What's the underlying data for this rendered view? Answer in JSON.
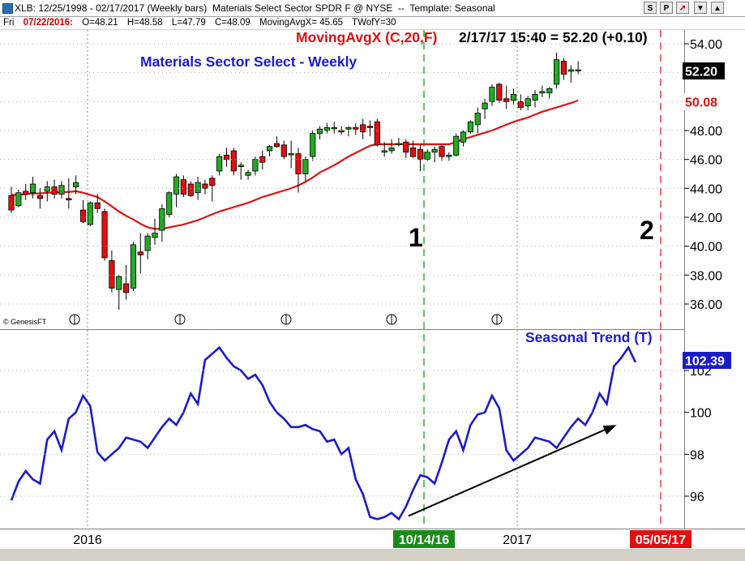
{
  "titlebar": {
    "symbol": "XLB: 12/25/1998 - 02/17/2017",
    "bars": "(Weekly bars)",
    "security": "Materials Select Sector SPDR F @ NYSE",
    "sep": "--",
    "template": "Template: Seasonal",
    "buttons": [
      "S",
      "P",
      "↗",
      "▼",
      "▲"
    ]
  },
  "ohlc_row": {
    "day": "Fri",
    "date": "07/22/2016:",
    "open": "O=48.21",
    "high": "H=48.58",
    "low": "L=47.79",
    "close": "C=48.09",
    "ma": "MovingAvgX= 45.65",
    "tw": "TWofY=30"
  },
  "chart_data": [
    {
      "type": "candlestick",
      "title": "Materials Sector Select - Weekly",
      "indicator_label": "MovingAvgX (C,20,F)",
      "status_label": "2/17/17 15:40 = 52.20 (+0.10)",
      "ylim": [
        35,
        55
      ],
      "y_ticks": [
        36,
        38,
        40,
        42,
        44,
        46,
        48,
        50,
        52,
        54
      ],
      "y_tick_labels": [
        "36.00",
        "38.00",
        "40.00",
        "42.00",
        "44.00",
        "46.00",
        "48.00",
        "50.00",
        "52.00",
        "54.00"
      ],
      "last_price_label": "52.20",
      "ma_value_label": "50.08",
      "watermark": "© GenesisFT",
      "candles": [
        [
          43.5,
          44.1,
          42.3,
          42.5
        ],
        [
          42.8,
          43.9,
          42.7,
          43.7
        ],
        [
          43.8,
          44.3,
          43.2,
          43.6
        ],
        [
          43.7,
          44.8,
          43.3,
          44.3
        ],
        [
          43.5,
          44.0,
          42.6,
          43.3
        ],
        [
          43.8,
          44.5,
          43.1,
          44.1
        ],
        [
          44.1,
          44.6,
          43.3,
          43.6
        ],
        [
          43.6,
          44.5,
          43.3,
          44.2
        ],
        [
          43.3,
          44.7,
          42.6,
          43.2
        ],
        [
          44.1,
          44.9,
          43.6,
          44.4
        ],
        [
          42.5,
          43.2,
          41.6,
          41.7
        ],
        [
          41.5,
          43.1,
          41.4,
          43.0
        ],
        [
          43.0,
          43.6,
          42.3,
          42.6
        ],
        [
          42.4,
          42.6,
          39.0,
          39.2
        ],
        [
          39.0,
          39.7,
          36.8,
          37.1
        ],
        [
          37.0,
          38.0,
          35.6,
          37.9
        ],
        [
          37.4,
          38.7,
          36.3,
          36.8
        ],
        [
          37.1,
          40.3,
          36.9,
          40.1
        ],
        [
          39.6,
          40.9,
          38.1,
          39.4
        ],
        [
          39.7,
          40.9,
          39.1,
          40.7
        ],
        [
          40.6,
          41.9,
          40.1,
          40.9
        ],
        [
          41.1,
          42.9,
          40.3,
          42.6
        ],
        [
          42.2,
          43.8,
          42.0,
          43.7
        ],
        [
          43.6,
          45.0,
          42.7,
          44.8
        ],
        [
          44.6,
          44.9,
          43.4,
          43.6
        ],
        [
          44.3,
          44.5,
          43.4,
          43.5
        ],
        [
          43.7,
          44.8,
          43.2,
          44.4
        ],
        [
          44.3,
          44.6,
          43.6,
          44.0
        ],
        [
          44.7,
          44.9,
          43.1,
          44.2
        ],
        [
          45.2,
          46.4,
          44.9,
          46.2
        ],
        [
          46.3,
          46.8,
          45.5,
          46.0
        ],
        [
          46.6,
          46.8,
          44.9,
          45.2
        ],
        [
          45.5,
          45.8,
          44.6,
          45.6
        ],
        [
          44.9,
          45.3,
          44.6,
          45.1
        ],
        [
          45.2,
          46.2,
          44.9,
          46.0
        ],
        [
          46.2,
          46.6,
          45.3,
          45.8
        ],
        [
          46.6,
          47.0,
          46.2,
          46.9
        ],
        [
          47.1,
          47.6,
          46.8,
          46.9
        ],
        [
          47.0,
          47.3,
          46.0,
          46.2
        ],
        [
          46.4,
          47.3,
          45.4,
          46.4
        ],
        [
          46.4,
          46.8,
          43.7,
          45.0
        ],
        [
          45.0,
          46.2,
          44.5,
          46.0
        ],
        [
          46.2,
          48.0,
          45.9,
          47.8
        ],
        [
          47.8,
          48.3,
          47.4,
          48.1
        ],
        [
          48.0,
          48.5,
          47.8,
          48.2
        ],
        [
          48.2,
          48.6,
          47.8,
          48.2
        ],
        [
          48.0,
          48.3,
          47.7,
          47.9
        ],
        [
          48.1,
          48.3,
          47.6,
          48.2
        ],
        [
          48.2,
          48.5,
          47.7,
          48.1
        ],
        [
          48.4,
          48.8,
          47.4,
          47.9
        ],
        [
          48.3,
          48.7,
          47.6,
          48.2
        ],
        [
          48.6,
          48.8,
          46.9,
          47.0
        ],
        [
          46.5,
          47.2,
          46.2,
          46.6
        ],
        [
          46.6,
          47.4,
          46.4,
          46.8
        ],
        [
          47.1,
          47.5,
          46.9,
          47.1
        ],
        [
          47.2,
          47.4,
          46.1,
          46.5
        ],
        [
          46.8,
          47.3,
          46.1,
          46.2
        ],
        [
          46.7,
          47.0,
          45.2,
          46.0
        ],
        [
          46.0,
          46.7,
          45.9,
          46.5
        ],
        [
          46.5,
          46.9,
          45.8,
          46.7
        ],
        [
          46.9,
          47.0,
          45.9,
          46.2
        ],
        [
          46.2,
          46.5,
          45.9,
          46.3
        ],
        [
          46.3,
          47.8,
          46.2,
          47.6
        ],
        [
          47.2,
          48.0,
          46.9,
          47.9
        ],
        [
          47.9,
          48.7,
          47.8,
          48.6
        ],
        [
          48.4,
          49.6,
          47.8,
          49.2
        ],
        [
          49.5,
          50.2,
          48.8,
          49.9
        ],
        [
          50.0,
          51.2,
          49.7,
          51.0
        ],
        [
          51.2,
          51.3,
          49.9,
          50.1
        ],
        [
          50.2,
          51.1,
          49.5,
          50.0
        ],
        [
          50.1,
          50.9,
          49.8,
          50.5
        ],
        [
          50.0,
          50.5,
          49.4,
          49.6
        ],
        [
          49.7,
          50.4,
          49.4,
          50.2
        ],
        [
          50.1,
          50.8,
          49.6,
          50.5
        ],
        [
          50.6,
          51.1,
          50.3,
          50.7
        ],
        [
          50.6,
          51.0,
          50.2,
          50.9
        ],
        [
          51.2,
          53.4,
          50.9,
          52.9
        ],
        [
          52.8,
          53.0,
          51.5,
          51.9
        ],
        [
          52.1,
          52.5,
          51.3,
          52.2
        ],
        [
          52.2,
          52.8,
          51.9,
          52.2
        ]
      ],
      "moving_average": [
        43.55,
        43.55,
        43.6,
        43.65,
        43.65,
        43.7,
        43.7,
        43.75,
        43.75,
        43.8,
        43.7,
        43.55,
        43.4,
        43.1,
        42.75,
        42.4,
        42.1,
        41.85,
        41.55,
        41.3,
        41.2,
        41.2,
        41.3,
        41.4,
        41.5,
        41.65,
        41.8,
        42.0,
        42.2,
        42.4,
        42.55,
        42.7,
        42.85,
        43.0,
        43.2,
        43.4,
        43.55,
        43.7,
        43.85,
        44.0,
        44.2,
        44.45,
        44.75,
        45.1,
        45.35,
        45.6,
        45.9,
        46.2,
        46.45,
        46.7,
        46.95,
        47.05,
        47.05,
        47.05,
        47.05,
        47.05,
        47.05,
        47.05,
        47.05,
        47.05,
        47.05,
        47.05,
        47.2,
        47.4,
        47.55,
        47.7,
        47.85,
        48.0,
        48.2,
        48.4,
        48.6,
        48.75,
        48.9,
        49.1,
        49.3,
        49.45,
        49.6,
        49.75,
        49.9,
        50.08
      ],
      "markers": [
        "1",
        "2"
      ]
    },
    {
      "type": "line",
      "series_label": "Seasonal Trend (T)",
      "last_value_label": "102.39",
      "ylim": [
        94.5,
        104.2
      ],
      "y_ticks": [
        96,
        98,
        100,
        102
      ],
      "y_tick_labels": [
        "96",
        "98",
        "100",
        "102"
      ],
      "x_labels": [
        {
          "text": "2016",
          "style": "plain"
        },
        {
          "text": "10/14/16",
          "style": "green"
        },
        {
          "text": "2017",
          "style": "plain"
        },
        {
          "text": "05/05/17",
          "style": "red"
        }
      ],
      "values": [
        95.8,
        96.7,
        97.2,
        96.8,
        96.6,
        98.7,
        99.1,
        98.2,
        99.7,
        100.0,
        100.8,
        100.3,
        98.1,
        97.7,
        98.0,
        98.3,
        98.8,
        98.7,
        98.6,
        98.3,
        98.8,
        99.3,
        99.7,
        99.4,
        100.0,
        100.9,
        100.4,
        102.5,
        102.8,
        103.1,
        102.6,
        102.2,
        102.0,
        101.6,
        101.8,
        101.3,
        100.5,
        100.0,
        99.7,
        99.3,
        99.3,
        99.4,
        99.2,
        99.1,
        98.6,
        98.7,
        98.0,
        98.3,
        96.8,
        96.1,
        95.0,
        94.9,
        95.0,
        95.2,
        94.9,
        95.5,
        96.3,
        97.0,
        96.9,
        96.6,
        97.6,
        98.7,
        99.1,
        98.2,
        99.4,
        99.9,
        100.0,
        100.8,
        100.2,
        98.2,
        97.7,
        98.0,
        98.3,
        98.8,
        98.7,
        98.6,
        98.3,
        98.8,
        99.3,
        99.7,
        99.4,
        100.0,
        100.9,
        100.4,
        102.2,
        102.6,
        103.1,
        102.39
      ],
      "arrow": {
        "from_x_index": 54,
        "from_value": 94.9,
        "to_x_index": 83,
        "to_value": 99.4
      }
    }
  ]
}
